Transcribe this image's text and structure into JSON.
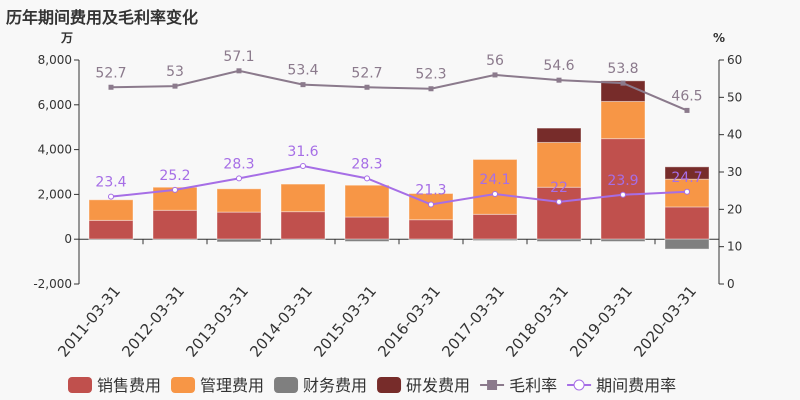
{
  "title": "历年期间费用及毛利率变化",
  "chart_data": {
    "type": "bar",
    "title": "历年期间费用及毛利率变化",
    "left_unit": "万",
    "right_unit": "%",
    "categories": [
      "2011-03-31",
      "2012-03-31",
      "2013-03-31",
      "2014-03-31",
      "2015-03-31",
      "2016-03-31",
      "2017-03-31",
      "2018-03-31",
      "2019-03-31",
      "2020-03-31"
    ],
    "ylim": [
      -2000,
      8000
    ],
    "yticks": [
      "-2,000",
      "0",
      "2,000",
      "4,000",
      "6,000",
      "8,000"
    ],
    "y2lim": [
      0,
      60
    ],
    "y2ticks": [
      "0",
      "10",
      "20",
      "30",
      "40",
      "50",
      "60"
    ],
    "stacked": true,
    "grid": false,
    "legend": "bottom",
    "series": [
      {
        "name": "销售费用",
        "kind": "bar",
        "color": "#c0504d",
        "values": [
          840,
          1290,
          1210,
          1230,
          990,
          870,
          1110,
          2320,
          4490,
          1440
        ]
      },
      {
        "name": "管理费用",
        "kind": "bar",
        "color": "#f79646",
        "values": [
          920,
          1030,
          1040,
          1230,
          1420,
          1170,
          2450,
          2000,
          1660,
          1240
        ]
      },
      {
        "name": "财务费用",
        "kind": "bar",
        "color": "#7f7f7f",
        "values": [
          -10,
          -10,
          -120,
          -10,
          -100,
          -20,
          -60,
          -100,
          -100,
          -440
        ]
      },
      {
        "name": "研发费用",
        "kind": "bar",
        "color": "#772c2a",
        "values": [
          0,
          0,
          0,
          0,
          0,
          0,
          0,
          640,
          920,
          550
        ]
      },
      {
        "name": "毛利率",
        "kind": "line",
        "axis": "right",
        "color": "#8b7a8c",
        "marker": "square",
        "values": [
          52.7,
          53,
          57.1,
          53.4,
          52.7,
          52.3,
          56,
          54.6,
          53.8,
          46.5
        ],
        "labels": [
          "52.7",
          "53",
          "57.1",
          "53.4",
          "52.7",
          "52.3",
          "56",
          "54.6",
          "53.8",
          "46.5"
        ]
      },
      {
        "name": "期间费用率",
        "kind": "line",
        "axis": "right",
        "color": "#a66ee6",
        "marker": "circle",
        "values": [
          23.4,
          25.2,
          28.3,
          31.6,
          28.3,
          21.3,
          24.1,
          22,
          23.9,
          24.7
        ],
        "labels": [
          "23.4",
          "25.2",
          "28.3",
          "31.6",
          "28.3",
          "21.3",
          "24.1",
          "22",
          "23.9",
          "24.7"
        ]
      }
    ]
  }
}
